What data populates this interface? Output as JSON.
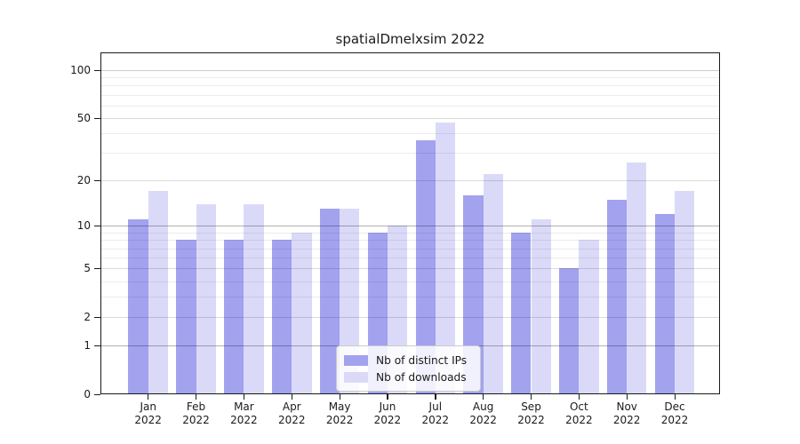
{
  "chart_data": {
    "type": "bar",
    "title": "spatialDmelxsim 2022",
    "categories": [
      "Jan",
      "Feb",
      "Mar",
      "Apr",
      "May",
      "Jun",
      "Jul",
      "Aug",
      "Sep",
      "Oct",
      "Nov",
      "Dec"
    ],
    "category_year": "2022",
    "series": [
      {
        "name": "Nb of distinct IPs",
        "color": "#a2a2ef",
        "values": [
          11,
          8,
          8,
          8,
          13,
          9,
          36,
          16,
          9,
          5,
          15,
          12
        ]
      },
      {
        "name": "Nb of downloads",
        "color": "#dadaf8",
        "values": [
          17,
          14,
          14,
          9,
          13,
          10,
          47,
          22,
          11,
          8,
          26,
          17
        ]
      }
    ],
    "yscale": "log10(1+x)",
    "y_ticks": [
      0,
      1,
      2,
      5,
      10,
      20,
      50,
      100
    ],
    "ylim": [
      0,
      130
    ],
    "grid": "horizontal",
    "legend_position": "bottom-center",
    "colors": {
      "major_gridline": "#b3b3b3",
      "mid_gridline": "#dcdcdc",
      "minor_gridline": "#ececec",
      "axis": "#1a1a1a",
      "background": "#ffffff"
    }
  }
}
